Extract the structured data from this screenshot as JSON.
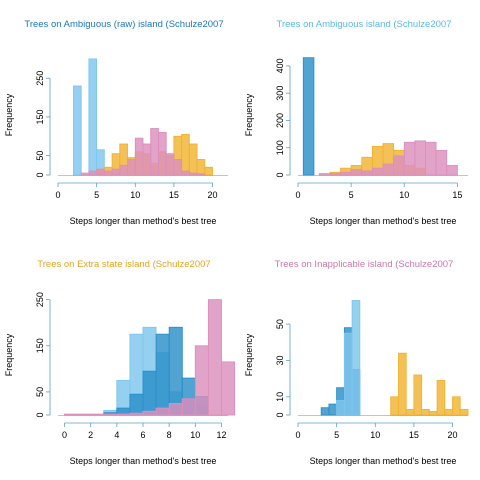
{
  "colors": {
    "light_blue": "#7fc6ee",
    "dark_blue": "#2b8fc8",
    "orange": "#f0b330",
    "pink": "#dc8fbd",
    "title_1": "#1b79b5",
    "title_2": "#5bb8e8",
    "title_3": "#e3a51d",
    "title_4": "#c978aa",
    "axis": "#5aa0c8"
  },
  "chart_data": [
    {
      "type": "histogram",
      "title": "Trees on Ambiguous (raw) island (Schulze2007",
      "xlabel": "Steps longer than method's best tree",
      "ylabel": "Frequency",
      "xlim": [
        0,
        22
      ],
      "ylim": [
        0,
        310
      ],
      "xticks": [
        0,
        5,
        10,
        15,
        20
      ],
      "yticks": [
        0,
        50,
        150,
        250
      ],
      "series": [
        {
          "color": "light_blue",
          "bins": [
            [
              2,
              3,
              230
            ],
            [
              4,
              5,
              300
            ],
            [
              5,
              6,
              65
            ]
          ]
        },
        {
          "color": "orange",
          "bins": [
            [
              5,
              6,
              15
            ],
            [
              6,
              7,
              20
            ],
            [
              7,
              8,
              55
            ],
            [
              8,
              9,
              80
            ],
            [
              9,
              10,
              45
            ],
            [
              10,
              11,
              60
            ],
            [
              11,
              12,
              55
            ],
            [
              12,
              13,
              30
            ],
            [
              13,
              14,
              60
            ],
            [
              14,
              15,
              50
            ],
            [
              15,
              16,
              100
            ],
            [
              16,
              17,
              105
            ],
            [
              17,
              18,
              80
            ],
            [
              18,
              19,
              40
            ],
            [
              19,
              20,
              20
            ]
          ]
        },
        {
          "color": "pink",
          "bins": [
            [
              3,
              4,
              5
            ],
            [
              4,
              5,
              10
            ],
            [
              5,
              6,
              15
            ],
            [
              6,
              7,
              10
            ],
            [
              7,
              8,
              15
            ],
            [
              8,
              9,
              25
            ],
            [
              9,
              10,
              40
            ],
            [
              10,
              11,
              95
            ],
            [
              11,
              12,
              80
            ],
            [
              12,
              13,
              120
            ],
            [
              13,
              14,
              110
            ],
            [
              14,
              15,
              55
            ],
            [
              15,
              16,
              40
            ],
            [
              16,
              17,
              10
            ],
            [
              17,
              18,
              5
            ],
            [
              18,
              19,
              3
            ]
          ]
        }
      ]
    },
    {
      "type": "histogram",
      "title": "Trees on Ambiguous island (Schulze2007",
      "xlabel": "Steps longer than method's best tree",
      "ylabel": "Frequency",
      "xlim": [
        0,
        16
      ],
      "ylim": [
        0,
        440
      ],
      "xticks": [
        0,
        5,
        10,
        15
      ],
      "yticks": [
        0,
        100,
        200,
        300,
        400
      ],
      "series": [
        {
          "color": "dark_blue",
          "bins": [
            [
              0.5,
              1.5,
              430
            ]
          ]
        },
        {
          "color": "orange",
          "bins": [
            [
              3,
              4,
              10
            ],
            [
              4,
              5,
              25
            ],
            [
              5,
              6,
              35
            ],
            [
              6,
              7,
              65
            ],
            [
              7,
              8,
              105
            ],
            [
              8,
              9,
              115
            ],
            [
              9,
              10,
              90
            ],
            [
              10,
              11,
              35
            ],
            [
              11,
              12,
              25
            ]
          ]
        },
        {
          "color": "pink",
          "bins": [
            [
              2,
              3,
              5
            ],
            [
              3,
              4,
              5
            ],
            [
              4,
              5,
              10
            ],
            [
              5,
              6,
              20
            ],
            [
              6,
              7,
              15
            ],
            [
              7,
              8,
              25
            ],
            [
              8,
              9,
              40
            ],
            [
              9,
              10,
              70
            ],
            [
              10,
              11,
              120
            ],
            [
              11,
              12,
              125
            ],
            [
              12,
              13,
              120
            ],
            [
              13,
              14,
              90
            ],
            [
              14,
              15,
              35
            ]
          ]
        }
      ]
    },
    {
      "type": "histogram",
      "title": "Trees on Extra state island (Schulze2007",
      "xlabel": "Steps longer than method's best tree",
      "ylabel": "Frequency",
      "xlim": [
        -0.5,
        12.5
      ],
      "ylim": [
        0,
        260
      ],
      "xticks": [
        0,
        2,
        4,
        6,
        8,
        10,
        12
      ],
      "yticks": [
        0,
        50,
        150,
        250
      ],
      "series": [
        {
          "color": "light_blue",
          "bins": [
            [
              3,
              4,
              10
            ],
            [
              4,
              5,
              75
            ],
            [
              5,
              6,
              175
            ],
            [
              6,
              7,
              190
            ],
            [
              7,
              8,
              135
            ],
            [
              8,
              9,
              50
            ],
            [
              9,
              10,
              35
            ],
            [
              10,
              11,
              20
            ]
          ]
        },
        {
          "color": "dark_blue",
          "bins": [
            [
              3,
              4,
              5
            ],
            [
              4,
              5,
              15
            ],
            [
              5,
              6,
              45
            ],
            [
              6,
              7,
              95
            ],
            [
              7,
              8,
              175
            ],
            [
              8,
              9,
              190
            ],
            [
              9,
              10,
              80
            ],
            [
              10,
              11,
              40
            ]
          ]
        },
        {
          "color": "pink",
          "bins": [
            [
              0,
              1,
              2
            ],
            [
              1,
              2,
              2
            ],
            [
              2,
              3,
              2
            ],
            [
              3,
              4,
              2
            ],
            [
              4,
              5,
              2
            ],
            [
              5,
              6,
              4
            ],
            [
              6,
              7,
              8
            ],
            [
              7,
              8,
              15
            ],
            [
              8,
              9,
              25
            ],
            [
              9,
              10,
              35
            ],
            [
              10,
              11,
              150
            ],
            [
              11,
              12,
              250
            ],
            [
              12,
              13,
              115
            ]
          ]
        }
      ]
    },
    {
      "type": "histogram",
      "title": "Trees on Inapplicable island (Schulze2007",
      "xlabel": "Steps longer than method's best tree",
      "ylabel": "Frequency",
      "xlim": [
        0,
        22
      ],
      "ylim": [
        0,
        66
      ],
      "xticks": [
        0,
        5,
        10,
        15,
        20
      ],
      "yticks": [
        0,
        10,
        30,
        50
      ],
      "series": [
        {
          "color": "dark_blue",
          "bins": [
            [
              3,
              4,
              4
            ],
            [
              4,
              5,
              6
            ],
            [
              5,
              6,
              15
            ],
            [
              6,
              7,
              48
            ],
            [
              7,
              8,
              25
            ]
          ]
        },
        {
          "color": "light_blue",
          "bins": [
            [
              5,
              6,
              8
            ],
            [
              6,
              7,
              45
            ],
            [
              7,
              8,
              63
            ]
          ]
        },
        {
          "color": "orange",
          "bins": [
            [
              12,
              13,
              10
            ],
            [
              13,
              14,
              34
            ],
            [
              14,
              15,
              3
            ],
            [
              15,
              16,
              22
            ],
            [
              16,
              17,
              3
            ],
            [
              17,
              18,
              2
            ],
            [
              18,
              19,
              19
            ],
            [
              19,
              20,
              3
            ],
            [
              20,
              21,
              10
            ],
            [
              21,
              22,
              3
            ]
          ]
        }
      ]
    }
  ]
}
